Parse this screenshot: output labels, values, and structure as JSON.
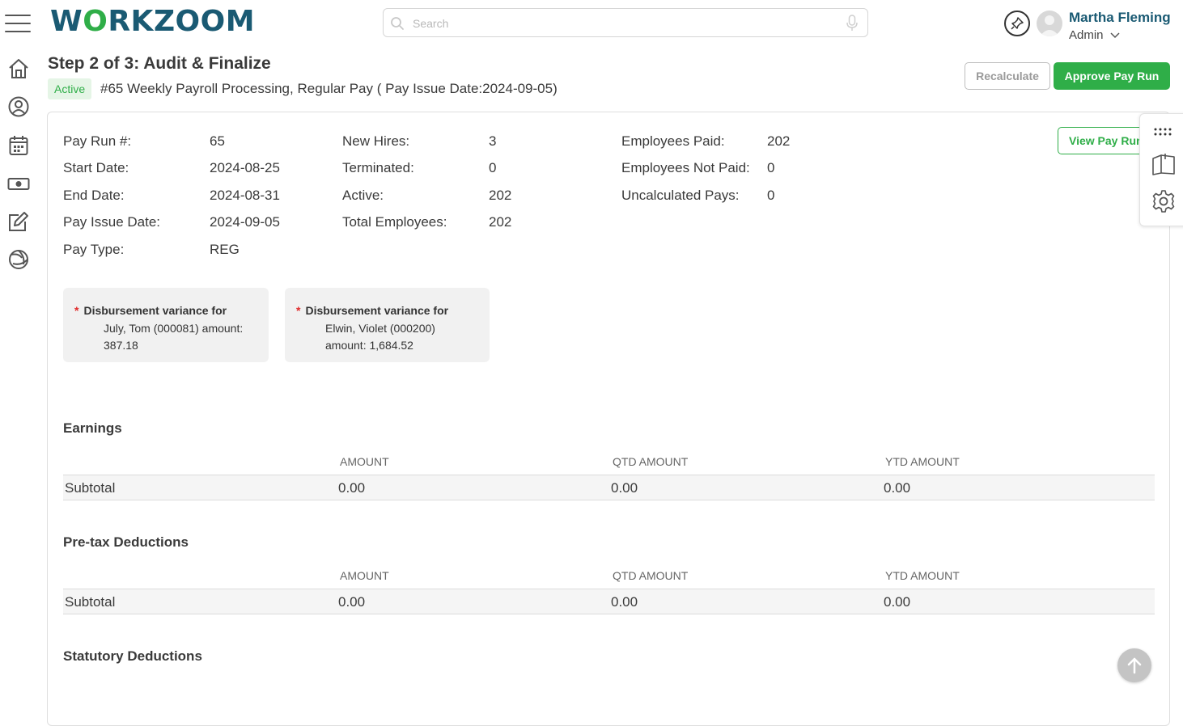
{
  "app": {
    "logo": "WORKZOOM"
  },
  "search": {
    "placeholder": "Search"
  },
  "user": {
    "name": "Martha Fleming",
    "role": "Admin"
  },
  "page": {
    "title": "Step 2 of 3: Audit & Finalize",
    "status": "Active",
    "subtitle": "#65 Weekly Payroll Processing, Regular Pay ( Pay Issue Date:2024-09-05)"
  },
  "actions": {
    "recalculate": "Recalculate",
    "approve": "Approve Pay Run",
    "view": "View Pay Run"
  },
  "summary": {
    "col1": [
      {
        "label": "Pay Run #:",
        "value": "65"
      },
      {
        "label": "Start Date:",
        "value": "2024-08-25"
      },
      {
        "label": "End Date:",
        "value": "2024-08-31"
      },
      {
        "label": "Pay Issue Date:",
        "value": "2024-09-05"
      },
      {
        "label": "Pay Type:",
        "value": "REG"
      }
    ],
    "col2": [
      {
        "label": "New Hires:",
        "value": "3"
      },
      {
        "label": "Terminated:",
        "value": "0"
      },
      {
        "label": "Active:",
        "value": "202"
      },
      {
        "label": "Total Employees:",
        "value": "202"
      }
    ],
    "col3": [
      {
        "label": "Employees Paid:",
        "value": "202"
      },
      {
        "label": "Employees Not Paid:",
        "value": "0"
      },
      {
        "label": "Uncalculated Pays:",
        "value": "0"
      }
    ]
  },
  "variances": [
    {
      "head": "Disbursement variance for",
      "line1": "July, Tom (000081) amount:",
      "line2": "387.18"
    },
    {
      "head": "Disbursement variance for",
      "line1": "Elwin, Violet (000200)",
      "line2": "amount: 1,684.52"
    }
  ],
  "sections": [
    {
      "title": "Earnings",
      "columns": [
        "AMOUNT",
        "QTD AMOUNT",
        "YTD AMOUNT"
      ],
      "row": {
        "label": "Subtotal",
        "amount": "0.00",
        "qtd": "0.00",
        "ytd": "0.00"
      }
    },
    {
      "title": "Pre-tax Deductions",
      "columns": [
        "AMOUNT",
        "QTD AMOUNT",
        "YTD AMOUNT"
      ],
      "row": {
        "label": "Subtotal",
        "amount": "0.00",
        "qtd": "0.00",
        "ytd": "0.00"
      }
    },
    {
      "title": "Statutory Deductions"
    }
  ],
  "icons": {
    "nav": [
      "home-icon",
      "user-circle-icon",
      "calendar-icon",
      "money-icon",
      "edit-icon",
      "aperture-icon"
    ],
    "right_panel": [
      "apps-grid-icon",
      "notes-icon",
      "gear-icon"
    ]
  },
  "colors": {
    "brand_green": "#2fae48",
    "brand_blue": "#1a5a73"
  }
}
